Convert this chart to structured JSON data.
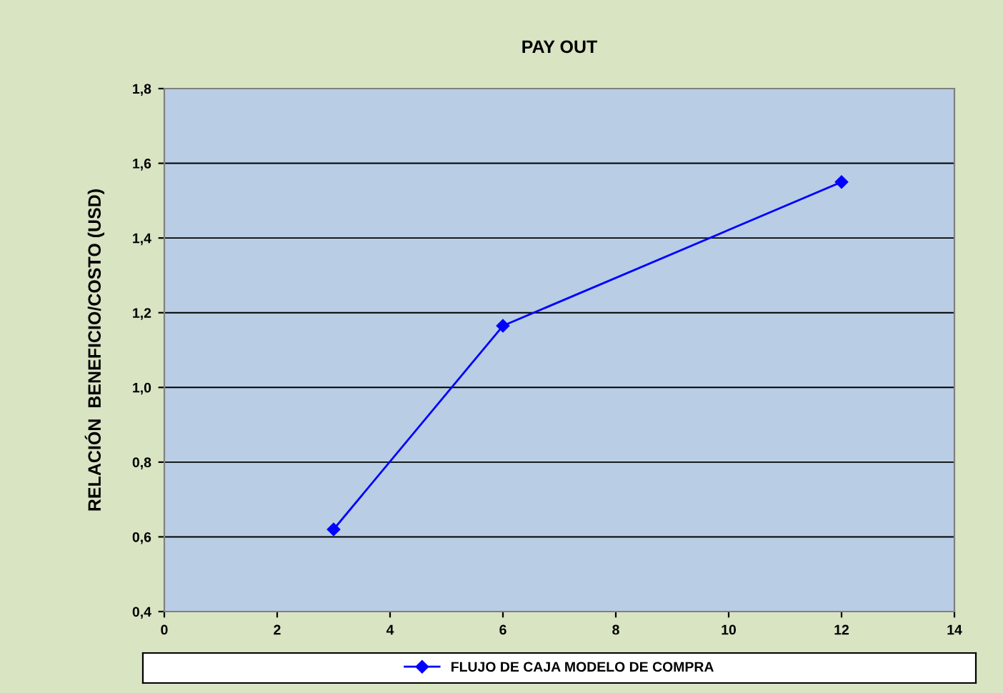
{
  "chart_data": {
    "type": "line",
    "title": "PAY OUT",
    "ylabel": "RELACIÓN  BENEFICIO/COSTO (USD)",
    "x": [
      3,
      6,
      12
    ],
    "series": [
      {
        "name": "FLUJO DE CAJA MODELO DE COMPRA",
        "color": "#0000ff",
        "values": [
          0.62,
          1.165,
          1.55
        ]
      }
    ],
    "xlim": [
      0,
      14
    ],
    "xticks": [
      0,
      2,
      4,
      6,
      8,
      10,
      12,
      14
    ],
    "ylim": [
      0.4,
      1.8
    ],
    "yticks": [
      {
        "value": 0.4,
        "label": "0,4"
      },
      {
        "value": 0.6,
        "label": "0,6"
      },
      {
        "value": 0.8,
        "label": "0,8"
      },
      {
        "value": 1.0,
        "label": "1,0"
      },
      {
        "value": 1.2,
        "label": "1,2"
      },
      {
        "value": 1.4,
        "label": "1,4"
      },
      {
        "value": 1.6,
        "label": "1,6"
      },
      {
        "value": 1.8,
        "label": "1,8"
      }
    ],
    "grid": "y",
    "legend": "bottom",
    "marker": "diamond",
    "line_style": "solid"
  }
}
